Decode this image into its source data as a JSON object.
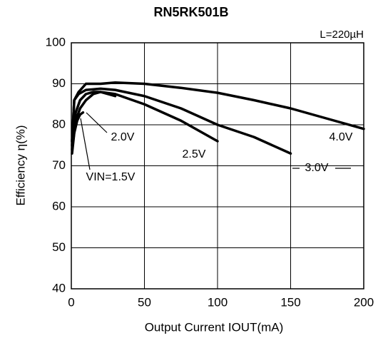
{
  "chart_data": {
    "type": "line",
    "title": "RN5RK501B",
    "subtitle": "L=220µH",
    "xlabel": "Output Current IOUT(mA)",
    "ylabel": "Efficiency η(%)",
    "xlim": [
      0,
      200
    ],
    "xticks": [
      0,
      50,
      100,
      150,
      200
    ],
    "ylim": [
      40,
      100
    ],
    "yticks": [
      40,
      50,
      60,
      70,
      80,
      90,
      100
    ],
    "grid": true,
    "series": [
      {
        "name": "VIN=1.5V",
        "color": "#000000",
        "x": [
          0.5,
          2,
          4,
          6,
          8
        ],
        "values": [
          73,
          78,
          81,
          82.5,
          83
        ]
      },
      {
        "name": "2.0V",
        "color": "#000000",
        "x": [
          0.5,
          3,
          6,
          10,
          15,
          20,
          30
        ],
        "values": [
          74,
          81,
          84,
          86,
          87.5,
          88,
          87
        ]
      },
      {
        "name": "2.5V",
        "color": "#000000",
        "x": [
          0.5,
          3,
          6,
          10,
          15,
          20,
          30,
          50,
          75,
          100
        ],
        "values": [
          75,
          83,
          86,
          87.5,
          88,
          88,
          87.5,
          85,
          81,
          76
        ]
      },
      {
        "name": "3.0V",
        "color": "#000000",
        "x": [
          0.5,
          2,
          5,
          10,
          20,
          30,
          50,
          75,
          100,
          125,
          150
        ],
        "values": [
          76,
          86,
          87.5,
          88.5,
          88.8,
          88.5,
          87,
          84,
          80,
          77,
          73
        ]
      },
      {
        "name": "4.0V",
        "color": "#000000",
        "x": [
          0.5,
          2,
          5,
          10,
          20,
          30,
          50,
          75,
          100,
          125,
          150,
          175,
          200
        ],
        "values": [
          76,
          86,
          88,
          90,
          90,
          90.3,
          90,
          89,
          87.8,
          86,
          84,
          81.5,
          79
        ]
      }
    ]
  }
}
